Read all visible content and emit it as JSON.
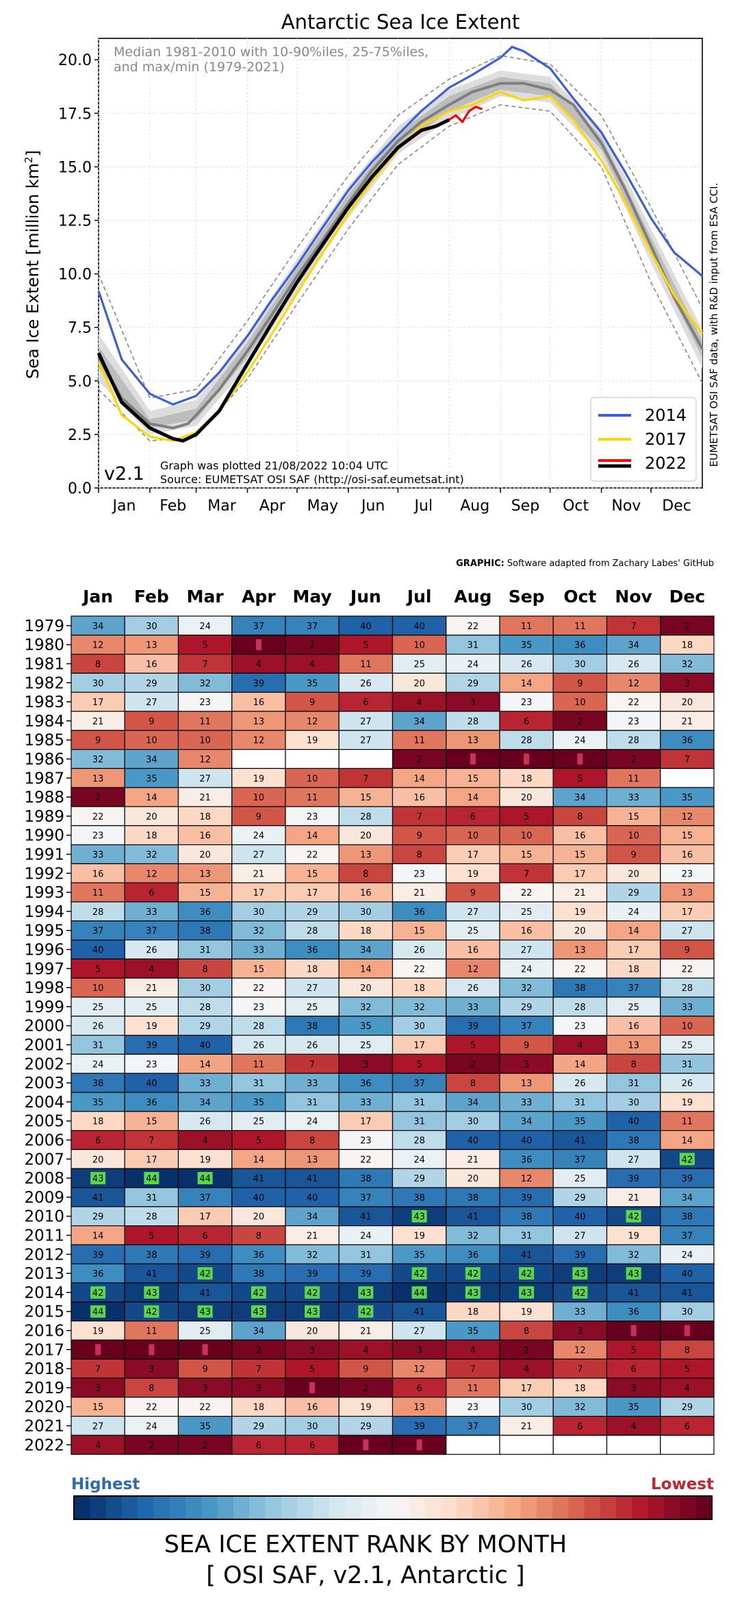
{
  "chart_data": [
    {
      "type": "line",
      "title": "Antarctic Sea Ice Extent",
      "ylabel": "Sea Ice Extent [million km²]",
      "ylabel_main": "Sea Ice Extent [million km",
      "ylabel_sup": "2",
      "ylabel_end": "]",
      "ylim": [
        0,
        21
      ],
      "yticks": [
        0.0,
        2.5,
        5.0,
        7.5,
        10.0,
        12.5,
        15.0,
        17.5,
        20.0
      ],
      "yticklabels": [
        "0.0",
        "2.5",
        "5.0",
        "7.5",
        "10.0",
        "12.5",
        "15.0",
        "17.5",
        "20.0"
      ],
      "xticklabels": [
        "Jan",
        "Feb",
        "Mar",
        "Apr",
        "May",
        "Jun",
        "Jul",
        "Aug",
        "Sep",
        "Oct",
        "Nov",
        "Dec"
      ],
      "xlim_days": [
        1,
        366
      ],
      "grid": true,
      "legend_position": "lower-right",
      "annotation_top": [
        "Median 1981-2010 with 10-90%iles, 25-75%iles,",
        "and max/min (1979-2021)"
      ],
      "version_label": "v2.1",
      "plotted_note": "Graph was plotted 21/08/2022 10:04 UTC",
      "source_note": "Source: EUMETSAT OSI SAF (http://osi-saf.eumetsat.int)",
      "side_note": "EUMETSAT OSI SAF data, with R&D input from ESA CCI.",
      "series": [
        {
          "name": "Median 1981-2010",
          "color": "#7f7f7f",
          "days": [
            1,
            15,
            32,
            46,
            55,
            60,
            74,
            91,
            105,
            121,
            135,
            152,
            166,
            182,
            196,
            213,
            227,
            244,
            258,
            274,
            288,
            305,
            319,
            335,
            349,
            366
          ],
          "values": [
            6.1,
            4.2,
            3.0,
            2.8,
            3.0,
            3.4,
            4.6,
            6.4,
            8.0,
            9.9,
            11.4,
            13.3,
            14.8,
            16.2,
            17.1,
            17.9,
            18.5,
            18.9,
            18.9,
            18.6,
            17.9,
            16.1,
            14.0,
            11.3,
            8.9,
            6.5
          ]
        },
        {
          "name": "10-90%iles",
          "color": "#dddddd",
          "days": [
            1,
            32,
            60,
            91,
            121,
            152,
            182,
            213,
            244,
            274,
            305,
            335,
            366
          ],
          "lower": [
            5.0,
            2.5,
            2.9,
            5.7,
            9.2,
            12.6,
            15.6,
            17.2,
            18.3,
            18.0,
            15.5,
            10.5,
            5.6
          ],
          "upper": [
            7.2,
            3.6,
            4.1,
            7.2,
            10.7,
            14.1,
            16.9,
            18.6,
            19.5,
            19.2,
            16.8,
            12.1,
            7.4
          ]
        },
        {
          "name": "25-75%iles",
          "color": "#bdbdbd",
          "days": [
            1,
            32,
            60,
            91,
            121,
            152,
            182,
            213,
            244,
            274,
            305,
            335,
            366
          ],
          "lower": [
            5.6,
            2.8,
            3.2,
            6.1,
            9.6,
            13.0,
            15.9,
            17.6,
            18.6,
            18.3,
            15.8,
            10.9,
            6.1
          ],
          "upper": [
            6.6,
            3.2,
            3.7,
            6.8,
            10.3,
            13.7,
            16.6,
            18.3,
            19.2,
            18.9,
            16.4,
            11.7,
            6.9
          ]
        },
        {
          "name": "max/min (1979-2021)",
          "color": "#888888",
          "days": [
            1,
            32,
            60,
            91,
            121,
            152,
            182,
            213,
            244,
            274,
            305,
            335,
            366
          ],
          "lower": [
            4.6,
            2.2,
            2.4,
            5.1,
            8.6,
            12.1,
            15.1,
            16.9,
            17.9,
            17.6,
            15.0,
            9.6,
            4.9
          ],
          "upper": [
            10.0,
            4.2,
            4.6,
            7.8,
            11.2,
            14.6,
            17.4,
            19.1,
            20.2,
            19.8,
            17.4,
            13.1,
            8.4
          ]
        },
        {
          "name": "2014",
          "color": "#3a5fd9",
          "days": [
            1,
            15,
            32,
            46,
            60,
            74,
            91,
            105,
            121,
            135,
            152,
            166,
            182,
            196,
            213,
            227,
            244,
            251,
            258,
            274,
            288,
            305,
            319,
            335,
            349,
            366
          ],
          "values": [
            9.2,
            6.0,
            4.4,
            3.9,
            4.3,
            5.4,
            7.1,
            8.7,
            10.4,
            12.0,
            13.9,
            15.2,
            16.5,
            17.6,
            18.7,
            19.3,
            20.1,
            20.6,
            20.4,
            19.6,
            18.2,
            16.6,
            14.8,
            12.6,
            11.0,
            9.9
          ]
        },
        {
          "name": "2017",
          "color": "#ffd700",
          "days": [
            1,
            15,
            32,
            46,
            60,
            74,
            91,
            105,
            121,
            135,
            152,
            166,
            182,
            196,
            213,
            227,
            244,
            258,
            274,
            288,
            305,
            319,
            335,
            349,
            366
          ],
          "values": [
            5.9,
            3.4,
            2.4,
            2.2,
            2.6,
            3.6,
            5.4,
            7.1,
            9.1,
            10.8,
            12.8,
            14.3,
            15.8,
            16.9,
            17.6,
            17.9,
            18.5,
            18.1,
            18.3,
            17.2,
            15.3,
            13.4,
            11.0,
            9.0,
            7.2
          ]
        },
        {
          "name": "2022",
          "color": "#ff0000",
          "days": [
            213,
            217,
            221,
            225,
            229,
            233
          ],
          "values": [
            17.2,
            17.4,
            17.1,
            17.6,
            17.8,
            17.7
          ]
        },
        {
          "name": "2022",
          "color": "#000000",
          "days": [
            1,
            15,
            32,
            46,
            52,
            60,
            74,
            91,
            105,
            121,
            135,
            152,
            166,
            182,
            196,
            205,
            213
          ],
          "values": [
            6.3,
            4.0,
            2.8,
            2.3,
            2.2,
            2.5,
            3.6,
            5.8,
            7.6,
            9.6,
            11.2,
            13.1,
            14.5,
            15.9,
            16.7,
            16.9,
            17.2
          ]
        }
      ],
      "legend": [
        {
          "label": "2014",
          "color": "#3a5fd9"
        },
        {
          "label": "2017",
          "color": "#ffd700"
        },
        {
          "label": "2022",
          "color": "#ff0000"
        },
        {
          "label": "2022",
          "color": "#000000"
        }
      ]
    },
    {
      "type": "heatmap",
      "graphic_credit_bold": "GRAPHIC:",
      "graphic_credit": "Software adapted from Zachary Labes' GitHub",
      "columns": [
        "Jan",
        "Feb",
        "Mar",
        "Apr",
        "May",
        "Jun",
        "Jul",
        "Aug",
        "Sep",
        "Oct",
        "Nov",
        "Dec"
      ],
      "rows": [
        "1979",
        "1980",
        "1981",
        "1982",
        "1983",
        "1984",
        "1985",
        "1986",
        "1987",
        "1988",
        "1989",
        "1990",
        "1991",
        "1992",
        "1993",
        "1994",
        "1995",
        "1996",
        "1997",
        "1998",
        "1999",
        "2000",
        "2001",
        "2002",
        "2003",
        "2004",
        "2005",
        "2006",
        "2007",
        "2008",
        "2009",
        "2010",
        "2011",
        "2012",
        "2013",
        "2014",
        "2015",
        "2016",
        "2017",
        "2018",
        "2019",
        "2020",
        "2021",
        "2022"
      ],
      "max_rank": 44,
      "values": [
        [
          34,
          30,
          24,
          37,
          37,
          40,
          40,
          22,
          11,
          11,
          7,
          2
        ],
        [
          12,
          13,
          5,
          1,
          2,
          5,
          10,
          31,
          35,
          36,
          34,
          18
        ],
        [
          8,
          16,
          7,
          4,
          4,
          11,
          25,
          24,
          26,
          30,
          26,
          32
        ],
        [
          30,
          29,
          32,
          39,
          35,
          26,
          20,
          29,
          14,
          9,
          12,
          3
        ],
        [
          17,
          27,
          23,
          16,
          9,
          6,
          4,
          3,
          23,
          10,
          22,
          20
        ],
        [
          21,
          9,
          11,
          13,
          12,
          27,
          34,
          28,
          6,
          2,
          23,
          21
        ],
        [
          9,
          10,
          10,
          12,
          19,
          27,
          11,
          13,
          28,
          24,
          28,
          36
        ],
        [
          32,
          34,
          12,
          null,
          null,
          null,
          2,
          1,
          1,
          1,
          2,
          7
        ],
        [
          13,
          35,
          27,
          19,
          10,
          7,
          14,
          15,
          18,
          5,
          11,
          null
        ],
        [
          2,
          14,
          21,
          10,
          11,
          15,
          16,
          14,
          20,
          34,
          33,
          35
        ],
        [
          22,
          20,
          18,
          9,
          23,
          28,
          7,
          6,
          5,
          8,
          15,
          12
        ],
        [
          23,
          18,
          16,
          24,
          14,
          20,
          9,
          10,
          10,
          16,
          10,
          15
        ],
        [
          33,
          32,
          20,
          27,
          22,
          13,
          8,
          17,
          15,
          15,
          9,
          16
        ],
        [
          16,
          12,
          13,
          21,
          15,
          8,
          23,
          19,
          7,
          17,
          20,
          23
        ],
        [
          11,
          6,
          15,
          17,
          17,
          16,
          21,
          9,
          22,
          21,
          29,
          13
        ],
        [
          28,
          33,
          36,
          30,
          29,
          30,
          36,
          27,
          25,
          19,
          24,
          17
        ],
        [
          37,
          37,
          38,
          32,
          28,
          18,
          15,
          25,
          16,
          20,
          14,
          27
        ],
        [
          40,
          26,
          31,
          33,
          36,
          34,
          26,
          16,
          27,
          13,
          17,
          9
        ],
        [
          5,
          4,
          8,
          15,
          18,
          14,
          22,
          12,
          24,
          22,
          18,
          22
        ],
        [
          10,
          21,
          30,
          22,
          27,
          20,
          18,
          26,
          32,
          38,
          37,
          28
        ],
        [
          25,
          25,
          28,
          23,
          25,
          32,
          32,
          33,
          29,
          28,
          25,
          33
        ],
        [
          26,
          19,
          29,
          28,
          38,
          35,
          30,
          39,
          37,
          23,
          16,
          10
        ],
        [
          31,
          39,
          40,
          26,
          26,
          25,
          17,
          5,
          9,
          4,
          13,
          25
        ],
        [
          24,
          23,
          14,
          11,
          7,
          3,
          5,
          2,
          3,
          14,
          8,
          31
        ],
        [
          38,
          40,
          33,
          31,
          33,
          36,
          37,
          8,
          13,
          26,
          31,
          26
        ],
        [
          35,
          36,
          34,
          35,
          31,
          33,
          31,
          34,
          33,
          31,
          30,
          19
        ],
        [
          18,
          15,
          26,
          25,
          24,
          17,
          31,
          30,
          34,
          35,
          40,
          11
        ],
        [
          6,
          7,
          4,
          5,
          8,
          23,
          28,
          40,
          40,
          41,
          38,
          14
        ],
        [
          20,
          17,
          19,
          14,
          13,
          22,
          24,
          21,
          36,
          37,
          27,
          42
        ],
        [
          43,
          44,
          44,
          41,
          41,
          38,
          29,
          20,
          12,
          25,
          39,
          39
        ],
        [
          41,
          31,
          37,
          40,
          40,
          37,
          38,
          38,
          39,
          29,
          21,
          34
        ],
        [
          29,
          28,
          17,
          20,
          34,
          41,
          43,
          41,
          38,
          40,
          42,
          38
        ],
        [
          14,
          5,
          6,
          8,
          21,
          24,
          19,
          32,
          31,
          27,
          19,
          37
        ],
        [
          39,
          38,
          39,
          36,
          32,
          31,
          35,
          36,
          41,
          39,
          32,
          24
        ],
        [
          36,
          41,
          42,
          38,
          39,
          39,
          42,
          42,
          42,
          43,
          43,
          40
        ],
        [
          42,
          43,
          41,
          42,
          42,
          43,
          44,
          43,
          43,
          42,
          41,
          41
        ],
        [
          44,
          42,
          43,
          43,
          43,
          42,
          41,
          18,
          19,
          33,
          36,
          30
        ],
        [
          19,
          11,
          25,
          34,
          20,
          21,
          27,
          35,
          8,
          3,
          1,
          1
        ],
        [
          1,
          1,
          1,
          2,
          3,
          4,
          3,
          4,
          2,
          12,
          5,
          8
        ],
        [
          7,
          3,
          9,
          7,
          5,
          9,
          12,
          7,
          4,
          7,
          6,
          5
        ],
        [
          3,
          8,
          3,
          3,
          1,
          2,
          6,
          11,
          17,
          18,
          3,
          4
        ],
        [
          15,
          22,
          22,
          18,
          16,
          19,
          13,
          23,
          30,
          32,
          35,
          29
        ],
        [
          27,
          24,
          35,
          29,
          30,
          29,
          39,
          37,
          21,
          6,
          4,
          6
        ],
        [
          4,
          2,
          2,
          6,
          6,
          1,
          1,
          null,
          null,
          null,
          null,
          null
        ]
      ],
      "highlight_ranks": [
        42,
        43,
        44
      ],
      "colorbar_left_label": "Highest",
      "colorbar_right_label": "Lowest",
      "footer_title": "SEA ICE EXTENT RANK BY MONTH",
      "footer_subtitle": "[ OSI SAF, v2.1, Antarctic ]"
    }
  ]
}
